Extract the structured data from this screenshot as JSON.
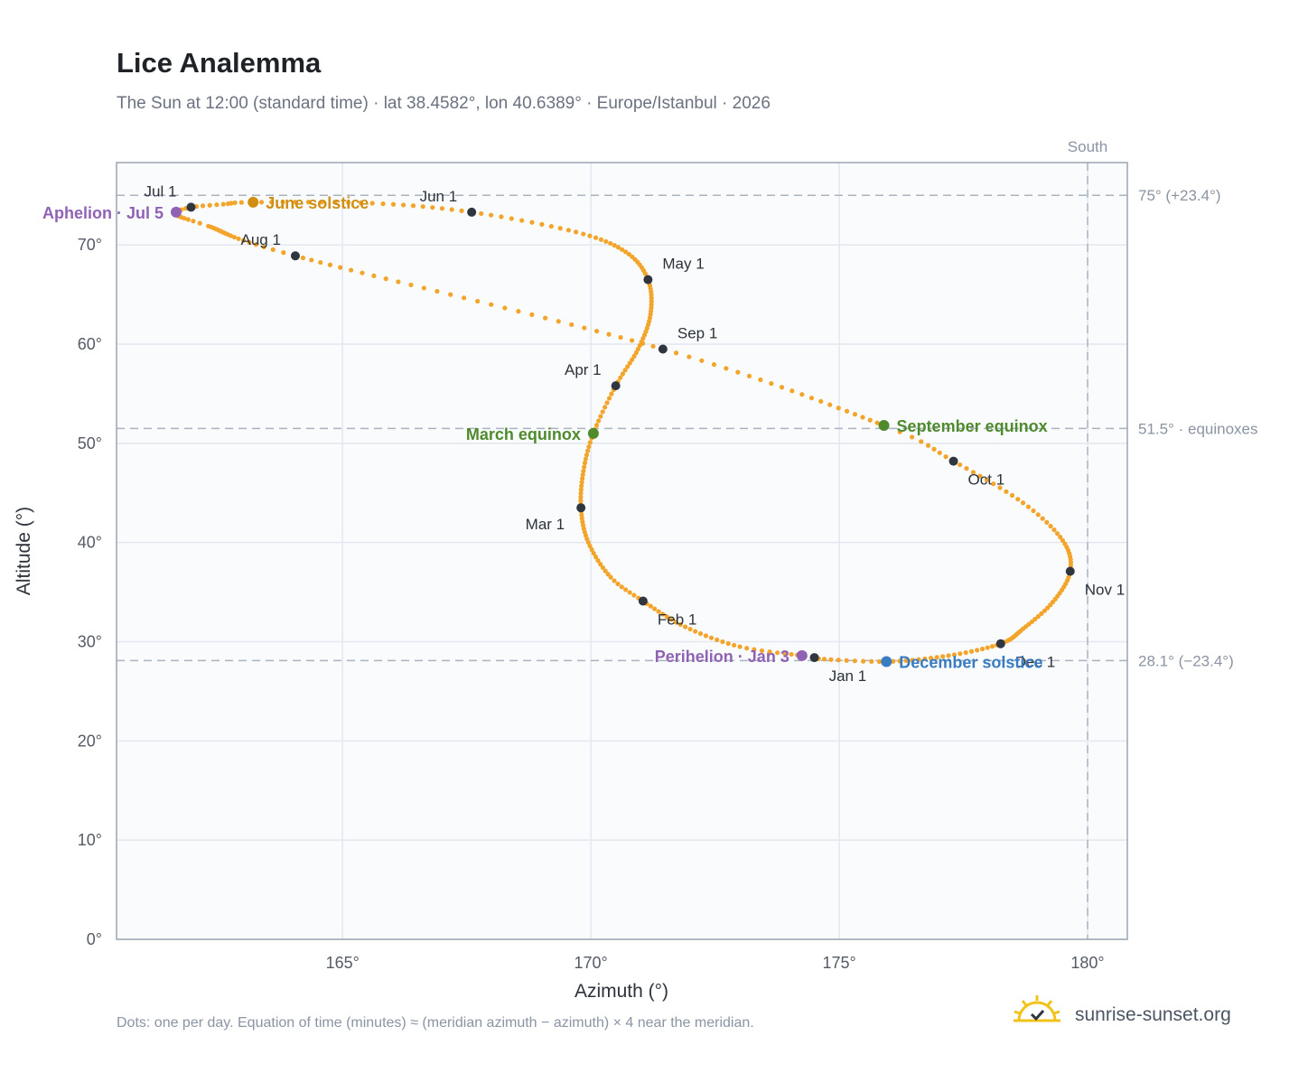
{
  "header": {
    "title": "Lice Analemma",
    "subtitle": "The Sun at 12:00 (standard time) · lat 38.4582°, lon 40.6389° · Europe/Istanbul · 2026"
  },
  "footer": {
    "note": "Dots: one per day. Equation of time (minutes) ≈ (meridian azimuth − azimuth) × 4 near the meridian.",
    "brand": "sunrise-sunset.org",
    "brand_icon": "sun-check-icon"
  },
  "colors": {
    "curve": "#f2a52a",
    "month_dot": "#2f3640",
    "june_solstice": "#d08e12",
    "december_solstice": "#3a7cc2",
    "equinox": "#4f8a2d",
    "apsis": "#8f62b4",
    "reference_line": "#aab4bf",
    "plot_background": "#f9fbfd",
    "frame": "#9aa5b2"
  },
  "chart_data": {
    "type": "scatter",
    "xlabel": "Azimuth (°)",
    "ylabel": "Altitude (°)",
    "xlim": [
      160.45,
      180.8
    ],
    "ylim": [
      0,
      78.3
    ],
    "grid": true,
    "x_ticks": [
      {
        "value": 165,
        "label": "165°"
      },
      {
        "value": 170,
        "label": "170°"
      },
      {
        "value": 175,
        "label": "175°"
      },
      {
        "value": 180,
        "label": "180°"
      }
    ],
    "y_ticks": [
      {
        "value": 0,
        "label": "0°"
      },
      {
        "value": 10,
        "label": "10°"
      },
      {
        "value": 20,
        "label": "20°"
      },
      {
        "value": 30,
        "label": "30°"
      },
      {
        "value": 40,
        "label": "40°"
      },
      {
        "value": 50,
        "label": "50°"
      },
      {
        "value": 60,
        "label": "60°"
      },
      {
        "value": 70,
        "label": "70°"
      }
    ],
    "reference_lines": [
      {
        "orientation": "horizontal",
        "value": 75.0,
        "label": "75° (+23.4°)"
      },
      {
        "orientation": "horizontal",
        "value": 51.5,
        "label": "51.5° · equinoxes"
      },
      {
        "orientation": "horizontal",
        "value": 28.1,
        "label": "28.1° (−23.4°)"
      },
      {
        "orientation": "vertical",
        "value": 180,
        "label": "South"
      }
    ],
    "months": [
      {
        "label": "Jan 1",
        "az": 174.5,
        "alt": 28.4,
        "label_pos": "below-right"
      },
      {
        "label": "Feb 1",
        "az": 171.05,
        "alt": 34.1,
        "label_pos": "below-right"
      },
      {
        "label": "Mar 1",
        "az": 169.8,
        "alt": 43.5,
        "label_pos": "below-left"
      },
      {
        "label": "Apr 1",
        "az": 170.5,
        "alt": 55.8,
        "label_pos": "above-left"
      },
      {
        "label": "May 1",
        "az": 171.15,
        "alt": 66.5,
        "label_pos": "above-right"
      },
      {
        "label": "Jun 1",
        "az": 167.6,
        "alt": 73.3,
        "label_pos": "above-left"
      },
      {
        "label": "Jul 1",
        "az": 161.95,
        "alt": 73.8,
        "label_pos": "above-left"
      },
      {
        "label": "Aug 1",
        "az": 164.05,
        "alt": 68.9,
        "label_pos": "above-left"
      },
      {
        "label": "Sep 1",
        "az": 171.45,
        "alt": 59.5,
        "label_pos": "above-right"
      },
      {
        "label": "Oct 1",
        "az": 177.3,
        "alt": 48.2,
        "label_pos": "below-right"
      },
      {
        "label": "Nov 1",
        "az": 179.65,
        "alt": 37.1,
        "label_pos": "below-right"
      },
      {
        "label": "Dec 1",
        "az": 178.25,
        "alt": 29.8,
        "label_pos": "below-right"
      }
    ],
    "events": [
      {
        "label": "June solstice",
        "az": 163.2,
        "alt": 74.3,
        "color": "#d08e12",
        "label_pos": "right"
      },
      {
        "label": "December solstice",
        "az": 175.95,
        "alt": 28.0,
        "color": "#3a7cc2",
        "label_pos": "right"
      },
      {
        "label": "March equinox",
        "az": 170.05,
        "alt": 51.0,
        "color": "#4f8a2d",
        "label_pos": "left"
      },
      {
        "label": "September equinox",
        "az": 175.9,
        "alt": 51.8,
        "color": "#4f8a2d",
        "label_pos": "right"
      },
      {
        "label": "Aphelion · Jul 5",
        "az": 161.65,
        "alt": 73.3,
        "color": "#8f62b4",
        "label_pos": "left"
      },
      {
        "label": "Perihelion · Jan 3",
        "az": 174.25,
        "alt": 28.6,
        "color": "#8f62b4",
        "label_pos": "left"
      }
    ],
    "daily_path_anchors": [
      {
        "day": 1,
        "az": 174.5,
        "alt": 28.4
      },
      {
        "day": 3,
        "az": 174.25,
        "alt": 28.6
      },
      {
        "day": 12,
        "az": 173.0,
        "alt": 29.5
      },
      {
        "day": 22,
        "az": 171.9,
        "alt": 31.5
      },
      {
        "day": 32,
        "az": 171.05,
        "alt": 34.1
      },
      {
        "day": 40,
        "az": 170.4,
        "alt": 36.5
      },
      {
        "day": 50,
        "az": 169.95,
        "alt": 40.0
      },
      {
        "day": 60,
        "az": 169.8,
        "alt": 43.5
      },
      {
        "day": 70,
        "az": 169.85,
        "alt": 47.2
      },
      {
        "day": 79,
        "az": 170.05,
        "alt": 51.0
      },
      {
        "day": 90,
        "az": 170.5,
        "alt": 55.8
      },
      {
        "day": 100,
        "az": 170.95,
        "alt": 59.5
      },
      {
        "day": 110,
        "az": 171.2,
        "alt": 63.0
      },
      {
        "day": 121,
        "az": 171.15,
        "alt": 66.5
      },
      {
        "day": 131,
        "az": 170.7,
        "alt": 69.3
      },
      {
        "day": 141,
        "az": 169.7,
        "alt": 71.3
      },
      {
        "day": 152,
        "az": 167.6,
        "alt": 73.3
      },
      {
        "day": 162,
        "az": 165.6,
        "alt": 74.2
      },
      {
        "day": 172,
        "az": 163.2,
        "alt": 74.3
      },
      {
        "day": 177,
        "az": 162.6,
        "alt": 74.1
      },
      {
        "day": 182,
        "az": 161.95,
        "alt": 73.8
      },
      {
        "day": 186,
        "az": 161.65,
        "alt": 73.3
      },
      {
        "day": 189,
        "az": 161.7,
        "alt": 72.9
      },
      {
        "day": 195,
        "az": 162.3,
        "alt": 71.9
      },
      {
        "day": 213,
        "az": 164.05,
        "alt": 68.9
      },
      {
        "day": 244,
        "az": 171.45,
        "alt": 59.5
      },
      {
        "day": 266,
        "az": 175.9,
        "alt": 51.8
      },
      {
        "day": 274,
        "az": 177.3,
        "alt": 48.2
      },
      {
        "day": 285,
        "az": 178.7,
        "alt": 44.0
      },
      {
        "day": 295,
        "az": 179.5,
        "alt": 40.2
      },
      {
        "day": 305,
        "az": 179.65,
        "alt": 37.1
      },
      {
        "day": 315,
        "az": 179.3,
        "alt": 34.0
      },
      {
        "day": 325,
        "az": 178.7,
        "alt": 31.3
      },
      {
        "day": 335,
        "az": 178.25,
        "alt": 29.8
      },
      {
        "day": 345,
        "az": 177.2,
        "alt": 28.6
      },
      {
        "day": 355,
        "az": 175.95,
        "alt": 28.0
      },
      {
        "day": 365,
        "az": 174.5,
        "alt": 28.3
      }
    ]
  }
}
